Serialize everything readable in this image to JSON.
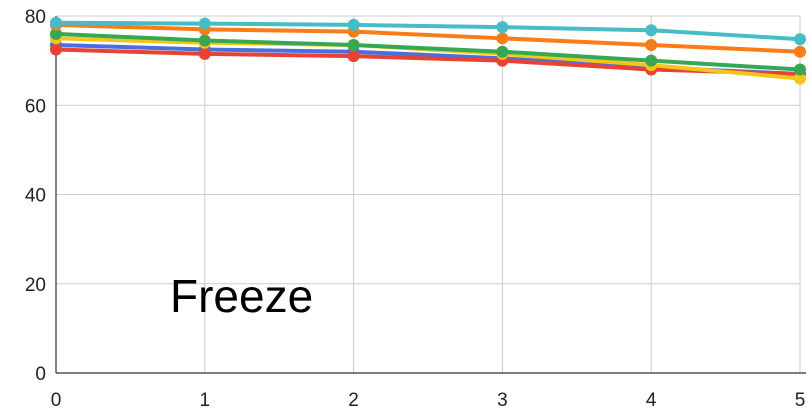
{
  "chart_data": {
    "type": "line",
    "title": "",
    "xlabel": "",
    "ylabel": "",
    "x": [
      0,
      1,
      2,
      3,
      4,
      5
    ],
    "xlim": [
      0,
      5
    ],
    "ylim": [
      0,
      80
    ],
    "yticks": [
      0,
      20,
      40,
      60,
      80
    ],
    "grid": true,
    "legend": "none",
    "annotation": "Freeze",
    "series": [
      {
        "color": "#4a6fdc",
        "values": [
          73.5,
          72.5,
          72,
          70.5,
          68.5,
          67
        ]
      },
      {
        "color": "#e94235",
        "values": [
          72.5,
          71.5,
          71,
          70,
          68,
          67
        ]
      },
      {
        "color": "#f5c518",
        "values": [
          75,
          74,
          73.5,
          71.5,
          69,
          66
        ]
      },
      {
        "color": "#34a853",
        "values": [
          76,
          74.5,
          73.5,
          72,
          70,
          68
        ]
      },
      {
        "color": "#fa7c17",
        "values": [
          78,
          77,
          76.5,
          75,
          73.5,
          72
        ]
      },
      {
        "color": "#46bdc6",
        "values": [
          78.5,
          78.3,
          78,
          77.5,
          76.8,
          74.8
        ]
      }
    ]
  }
}
